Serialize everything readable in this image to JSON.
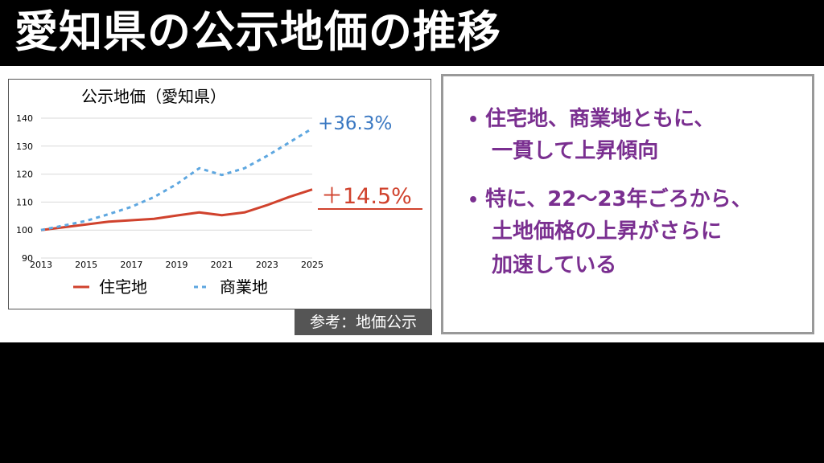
{
  "title": "愛知県の公示地価の推移",
  "source_label": "参考：地価公示",
  "bullets": [
    {
      "line1": "住宅地、商業地ともに、",
      "line2": "一貫して上昇傾向"
    },
    {
      "line1": "特に、22〜23年ごろから、",
      "line2": "土地価格の上昇がさらに",
      "line3": "加速している"
    }
  ],
  "colors": {
    "residential": "#d0422d",
    "commercial": "#5ea7e0",
    "commercial_label": "#3a78c2",
    "bullet_text": "#7a2f90"
  },
  "chart_data": {
    "type": "line",
    "title": "公示地価（愛知県）",
    "x": [
      2013,
      2014,
      2015,
      2016,
      2017,
      2018,
      2019,
      2020,
      2021,
      2022,
      2023,
      2024,
      2025
    ],
    "xticks": [
      2013,
      2015,
      2017,
      2019,
      2021,
      2023,
      2025
    ],
    "yticks": [
      90,
      100,
      110,
      120,
      130,
      140
    ],
    "xlim": [
      2013,
      2025
    ],
    "ylim": [
      90,
      140
    ],
    "grid": true,
    "legend_placement": "bottom",
    "series": [
      {
        "name": "住宅地",
        "style": "solid",
        "color": "#d0422d",
        "values": [
          100,
          101,
          102,
          103,
          103.5,
          104,
          105.2,
          106.3,
          105.3,
          106.3,
          108.9,
          111.9,
          114.5
        ],
        "end_label": "＋14.5%"
      },
      {
        "name": "商業地",
        "style": "dashed",
        "color": "#5ea7e0",
        "values": [
          100,
          101.6,
          103.3,
          105.7,
          108.3,
          111.8,
          116.4,
          122.1,
          119.7,
          122.1,
          126.5,
          131.4,
          136.3
        ],
        "end_label": "+36.3%"
      }
    ]
  }
}
